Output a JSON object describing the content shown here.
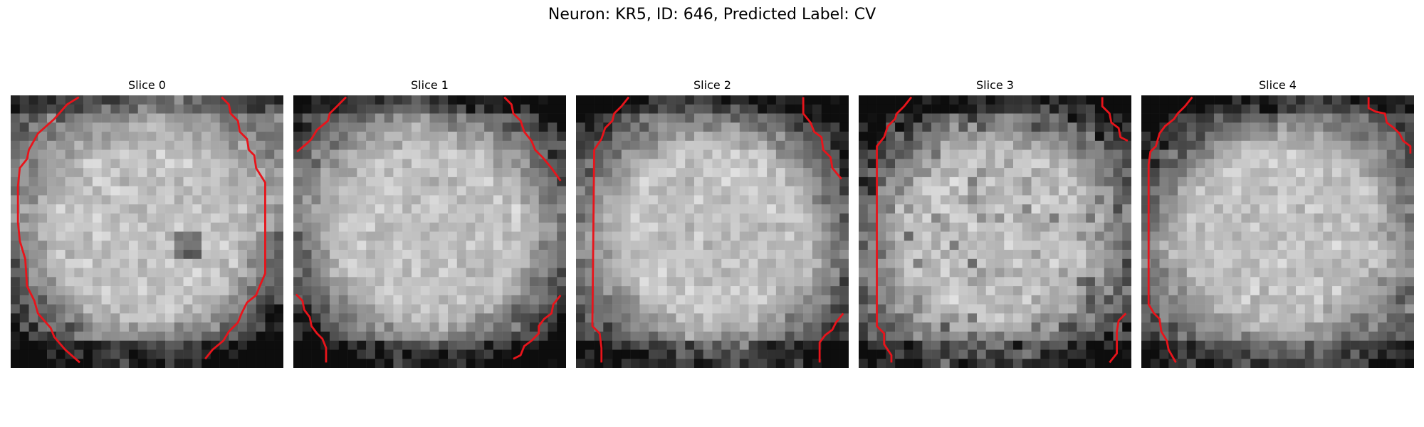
{
  "figure": {
    "title": "Neuron: KR5, ID: 646, Predicted Label: CV"
  },
  "contour_color": "#e8141b",
  "panels": [
    {
      "title": "Slice 0",
      "seed": 11,
      "dark_corners": [
        0.45,
        0.35,
        0.75,
        0.8
      ],
      "mode": "oval"
    },
    {
      "title": "Slice 1",
      "seed": 23,
      "dark_corners": [
        0.55,
        0.7,
        0.8,
        0.8
      ],
      "mode": "light"
    },
    {
      "title": "Slice 2",
      "seed": 37,
      "dark_corners": [
        0.7,
        0.8,
        0.65,
        0.65
      ],
      "mode": "light"
    },
    {
      "title": "Slice 3",
      "seed": 41,
      "dark_corners": [
        0.85,
        0.7,
        0.55,
        0.6
      ],
      "mode": "busy"
    },
    {
      "title": "Slice 4",
      "seed": 53,
      "dark_corners": [
        0.9,
        0.55,
        0.6,
        0.5
      ],
      "mode": "light"
    }
  ]
}
